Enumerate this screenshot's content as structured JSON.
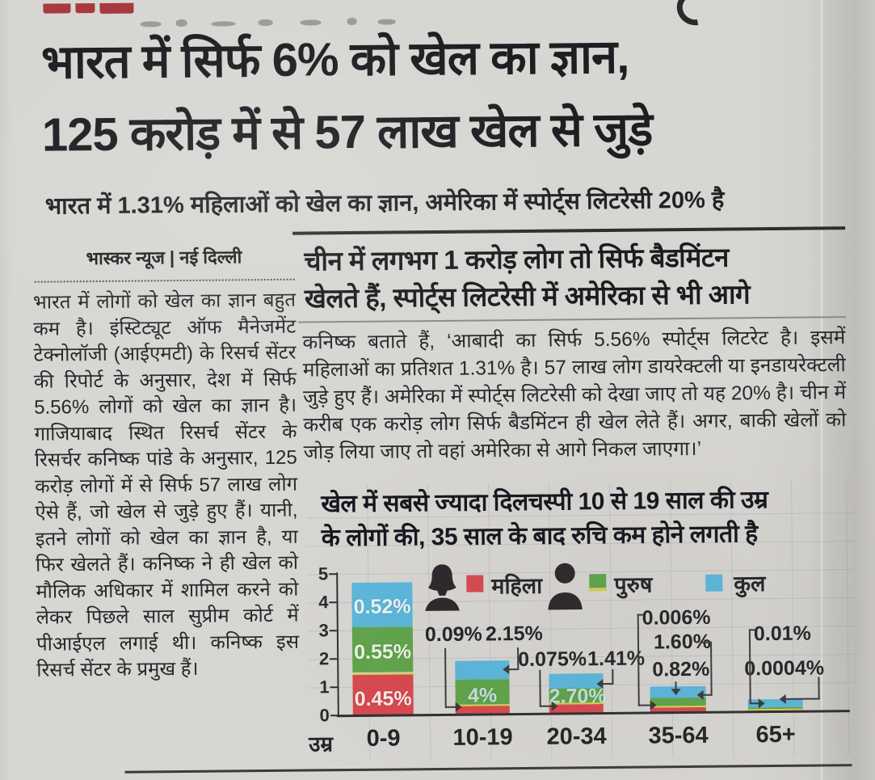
{
  "headline": {
    "line1": "भारत में सिर्फ 6% को खेल का ज्ञान,",
    "line2": "125 करोड़ में से 57 लाख खेल से जुड़े"
  },
  "subheadline": "भारत में 1.31% महिलाओं को खेल का ज्ञान, अमेरिका में स्पोर्ट्स लिटरेसी 20% है",
  "byline": "भास्कर न्यूज | नई दिल्ली",
  "left_column": {
    "body": "भारत में लोगों को खेल का ज्ञान बहुत कम है। इंस्टिट्यूट ऑफ मैनेजमेंट टेक्नोलॉजी (आईएमटी) के रिसर्च सेंटर की रिपोर्ट के अनुसार, देश में सिर्फ 5.56% लोगों को खेल का ज्ञान है। गाजियाबाद स्थित रिसर्च सेंटर के रिसर्चर कनिष्क पांडे के अनुसार, 125 करोड़ लोगों में से सिर्फ 57 लाख लोग ऐसे हैं, जो खेल से जुड़े हुए हैं। यानी, इतने लोगों को खेल का ज्ञान है, या फिर खेलते हैं। कनिष्क ने ही खेल को मौलिक अधिकार में शामिल करने को लेकर पिछले साल सुप्रीम कोर्ट में पीआईएल लगाई थी। कनिष्क इस रिसर्च सेंटर के प्रमुख हैं।"
  },
  "right_column": {
    "subhead_line1": "चीन में लगभग 1 करोड़ लोग तो सिर्फ बैडमिंटन",
    "subhead_line2": "खेलते हैं, स्पोर्ट्स लिटरेसी में अमेरिका से भी आगे",
    "body": "कनिष्क बताते हैं, ‘आबादी का सिर्फ 5.56% स्पोर्ट्स लिटरेट है। इसमें महिलाओं का प्रतिशत 1.31% है। 57 लाख लोग डायरेक्टली या इनडायरेक्टली जुड़े हुए हैं। अमेरिका में स्पोर्ट्स लिटरेसी को देखा जाए तो यह 20% है। चीन में करीब एक करोड़ लोग सिर्फ बैडमिंटन ही खेल लेते हैं। अगर, बाकी खेलों को जोड़ लिया जाए तो वहां अमेरिका से आगे निकल जाएगा।’"
  },
  "chart_data": {
    "type": "bar",
    "stacked": true,
    "title_line1": "खेल में सबसे ज्यादा दिलचस्पी 10 से 19 साल की उम्र",
    "title_line2": "के लोगों की, 35 साल के बाद रुचि कम होने लगती है",
    "x_axis_label": "उम्र",
    "categories": [
      "0-9",
      "10-19",
      "20-34",
      "35-64",
      "65+"
    ],
    "ylim": [
      0,
      5
    ],
    "yticks": [
      "5",
      "4",
      "3",
      "2",
      "1",
      "0"
    ],
    "grid": true,
    "legend_position": "top",
    "legend": [
      {
        "label": "महिला",
        "swatch": "#d7484f",
        "icon": "female-silhouette"
      },
      {
        "label": "पुरुष",
        "swatch": "#5fa44b",
        "icon": "male-silhouette"
      },
      {
        "label": "कुल",
        "swatch": "#5ab7dc",
        "icon": null
      }
    ],
    "colors": {
      "महिला": "#d7484f",
      "पुरुष": "#5fa44b",
      "कुल": "#5ab7dc",
      "divider": "#d9d04a"
    },
    "printed_labels": {
      "0-9": {
        "महिला": "0.45%",
        "पुरुष": "0.55%",
        "कुल": "0.52%"
      },
      "10-19": {
        "महिला": "0.09%",
        "पुरुष": "4%",
        "कुल": "2.15%"
      },
      "20-34": {
        "महिला": "0.075%",
        "पुरुष": "2.70%",
        "कुल": "1.41%"
      },
      "35-64": {
        "महिला": "0.006%",
        "पुरुष": "1.60%",
        "कुल": "0.82%"
      },
      "65+": {
        "महिला": "0.01%",
        "कुल": "0.0004%"
      }
    },
    "in_bar_labels": [
      {
        "category": "0-9",
        "series": "कुल",
        "text": "0.52%"
      },
      {
        "category": "0-9",
        "series": "पुरुष",
        "text": "0.55%"
      },
      {
        "category": "0-9",
        "series": "महिला",
        "text": "0.45%"
      },
      {
        "category": "10-19",
        "series": "पुरुष",
        "text": "4%"
      },
      {
        "category": "20-34",
        "series": "पुरुष",
        "text": "2.70%"
      }
    ],
    "callouts": [
      {
        "category": "10-19",
        "series": "महिला",
        "text": "0.09%"
      },
      {
        "category": "10-19",
        "series": "कुल",
        "text": "2.15%"
      },
      {
        "category": "20-34",
        "series": "महिला",
        "text": "0.075%"
      },
      {
        "category": "20-34",
        "series": "कुल",
        "text": "1.41%"
      },
      {
        "category": "35-64",
        "series": "महिला",
        "text": "0.006%"
      },
      {
        "category": "35-64",
        "series": "पुरुष",
        "text": "1.60%"
      },
      {
        "category": "35-64",
        "series": "कुल",
        "text": "0.82%"
      },
      {
        "category": "65+",
        "series": "महिला",
        "text": "0.01%"
      },
      {
        "category": "65+",
        "series": "कुल",
        "text": "0.0004%"
      }
    ],
    "bars_axis_units": [
      {
        "category": "0-9",
        "segments": [
          {
            "series": "महिला",
            "units": 1.42
          },
          {
            "series": "divider",
            "units": 0.08
          },
          {
            "series": "पुरुष",
            "units": 1.62
          },
          {
            "series": "कुल",
            "units": 1.58
          }
        ]
      },
      {
        "category": "10-19",
        "segments": [
          {
            "series": "महिला",
            "units": 0.28
          },
          {
            "series": "divider",
            "units": 0.06
          },
          {
            "series": "पुरुष",
            "units": 0.9
          },
          {
            "series": "कुल",
            "units": 0.64
          }
        ]
      },
      {
        "category": "20-34",
        "segments": [
          {
            "series": "महिला",
            "units": 0.32
          },
          {
            "series": "divider",
            "units": 0.05
          },
          {
            "series": "पुरुष",
            "units": 0.52
          },
          {
            "series": "कुल",
            "units": 0.51
          }
        ]
      },
      {
        "category": "35-64",
        "segments": [
          {
            "series": "महिला",
            "units": 0.18
          },
          {
            "series": "divider",
            "units": 0.05
          },
          {
            "series": "पुरुष",
            "units": 0.28
          },
          {
            "series": "कुल",
            "units": 0.41
          }
        ]
      },
      {
        "category": "65+",
        "segments": [
          {
            "series": "महिला",
            "units": 0.03
          },
          {
            "series": "divider",
            "units": 0.07
          },
          {
            "series": "पुरुष",
            "units": 0.05
          },
          {
            "series": "कुल",
            "units": 0.28
          }
        ]
      }
    ]
  }
}
